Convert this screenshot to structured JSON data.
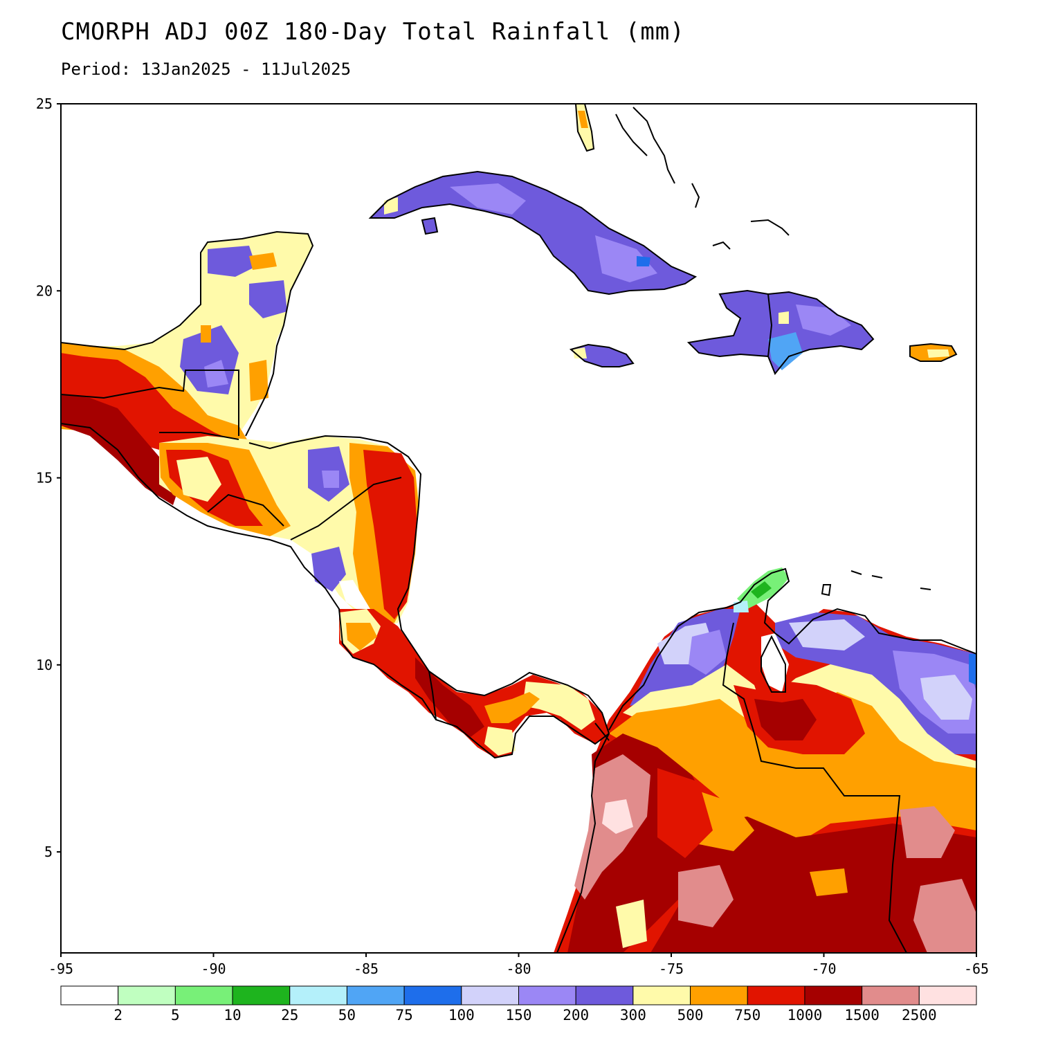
{
  "title": "CMORPH ADJ 00Z 180-Day Total Rainfall (mm)",
  "subtitle": "Period: 13Jan2025 - 11Jul2025",
  "map": {
    "lon_range": [
      -95,
      -65
    ],
    "lat_range": [
      2.3,
      25
    ],
    "lon_ticks": [
      -95,
      -90,
      -85,
      -80,
      -75,
      -70,
      -65
    ],
    "lat_ticks": [
      5,
      10,
      15,
      20,
      25
    ],
    "lon_tick_labels": [
      "-95",
      "-90",
      "-85",
      "-80",
      "-75",
      "-70",
      "-65"
    ],
    "lat_tick_labels": [
      "5",
      "10",
      "15",
      "20",
      "25"
    ]
  },
  "colorbar": {
    "colors": [
      "#ffffff",
      "#c0ffc0",
      "#78f078",
      "#1eb41e",
      "#b4f0fa",
      "#50a5f5",
      "#1e6eeb",
      "#d2d2fa",
      "#9b87f5",
      "#6e5adc",
      "#fffaaa",
      "#ffa000",
      "#e11400",
      "#a50000",
      "#e18c8c",
      "#ffe1e1"
    ],
    "labels": [
      "2",
      "5",
      "10",
      "25",
      "50",
      "75",
      "100",
      "150",
      "200",
      "300",
      "500",
      "750",
      "1000",
      "1500",
      "2500"
    ]
  },
  "legend_colors": {
    "land_outline": "#000000",
    "internal_borders": "#aaaaaa"
  }
}
